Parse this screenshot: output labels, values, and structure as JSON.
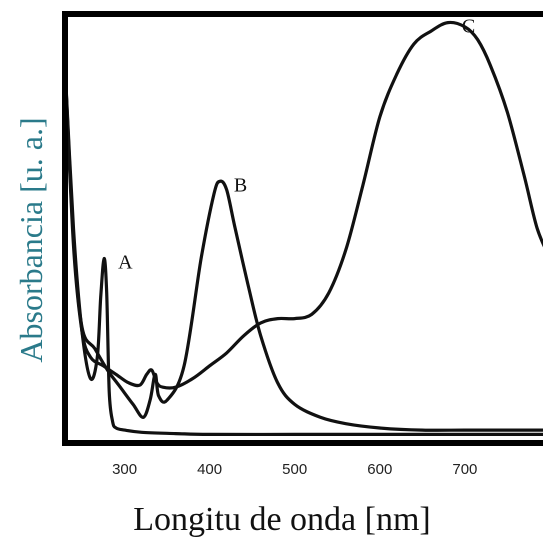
{
  "chart_data": {
    "type": "line",
    "title": "",
    "xlabel": "Longitu de onda [nm]",
    "ylabel": "Absorbancia [u. a.]",
    "xlim": [
      230,
      800
    ],
    "ylim": [
      0,
      1
    ],
    "x_ticks": [
      "300",
      "400",
      "500",
      "600",
      "700"
    ],
    "x_tick_values": [
      300,
      400,
      500,
      600,
      700
    ],
    "y_ticks_shown": false,
    "grid": false,
    "legend": "none (curves labelled directly)",
    "series": [
      {
        "name": "A",
        "x": [
          230,
          240,
          250,
          260,
          268,
          272,
          276,
          279,
          282,
          286,
          290,
          300,
          320,
          360,
          400,
          500,
          600,
          700,
          800
        ],
        "y": [
          0.88,
          0.5,
          0.26,
          0.15,
          0.2,
          0.34,
          0.43,
          0.35,
          0.12,
          0.05,
          0.035,
          0.03,
          0.025,
          0.022,
          0.02,
          0.02,
          0.02,
          0.02,
          0.02
        ]
      },
      {
        "name": "B",
        "x": [
          230,
          240,
          250,
          265,
          280,
          295,
          310,
          322,
          330,
          336,
          340,
          350,
          370,
          390,
          405,
          412,
          420,
          430,
          445,
          460,
          480,
          500,
          530,
          560,
          600,
          650,
          700,
          750,
          800
        ],
        "y": [
          0.88,
          0.48,
          0.27,
          0.22,
          0.17,
          0.13,
          0.09,
          0.06,
          0.1,
          0.16,
          0.11,
          0.1,
          0.18,
          0.43,
          0.58,
          0.61,
          0.59,
          0.5,
          0.37,
          0.25,
          0.14,
          0.09,
          0.06,
          0.045,
          0.035,
          0.03,
          0.03,
          0.03,
          0.03
        ]
      },
      {
        "name": "C",
        "x": [
          230,
          240,
          250,
          260,
          275,
          290,
          305,
          318,
          326,
          332,
          338,
          345,
          360,
          380,
          400,
          420,
          440,
          460,
          480,
          500,
          520,
          540,
          560,
          580,
          600,
          620,
          640,
          660,
          680,
          700,
          715,
          730,
          750,
          770,
          785,
          800
        ],
        "y": [
          0.88,
          0.46,
          0.26,
          0.2,
          0.18,
          0.16,
          0.14,
          0.135,
          0.16,
          0.17,
          0.14,
          0.13,
          0.13,
          0.15,
          0.18,
          0.21,
          0.25,
          0.28,
          0.29,
          0.29,
          0.3,
          0.35,
          0.45,
          0.6,
          0.76,
          0.86,
          0.93,
          0.96,
          0.98,
          0.97,
          0.94,
          0.88,
          0.77,
          0.62,
          0.5,
          0.43
        ]
      }
    ]
  }
}
